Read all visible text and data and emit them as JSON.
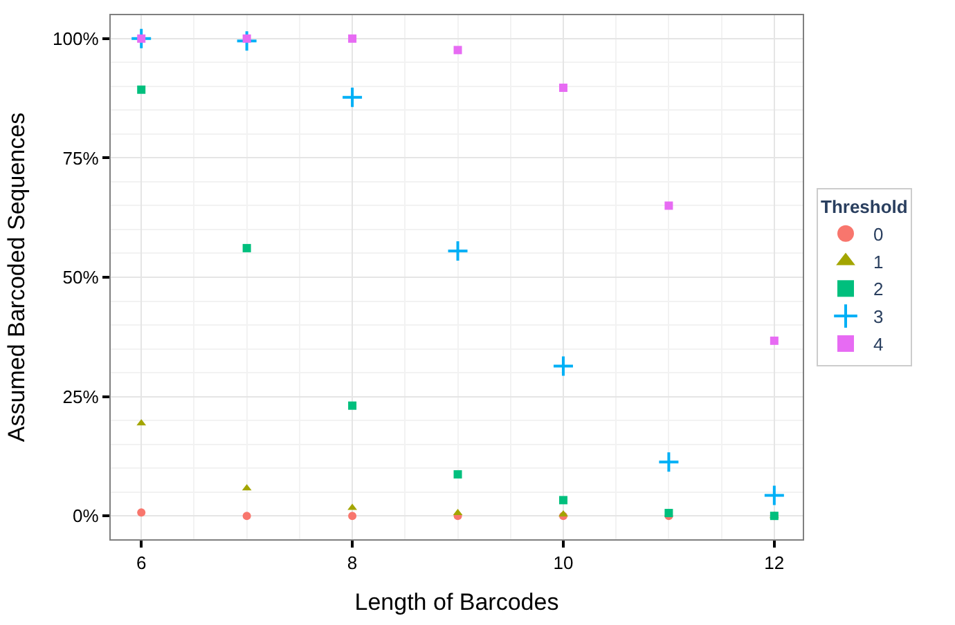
{
  "chart_data": {
    "type": "scatter",
    "xlabel": "Length of Barcodes",
    "ylabel": "Assumed Barcoded Sequences",
    "legend_title": "Threshold",
    "x": [
      6,
      7,
      8,
      9,
      10,
      11,
      12
    ],
    "series": [
      {
        "name": "0",
        "color": "#f8766d",
        "marker": "circle",
        "values": [
          0.7,
          0,
          0,
          0,
          0,
          0,
          0
        ]
      },
      {
        "name": "1",
        "color": "#a3a500",
        "marker": "triangle",
        "values": [
          19.4,
          5.8,
          1.7,
          0.6,
          0.3,
          null,
          0
        ]
      },
      {
        "name": "2",
        "color": "#00bf7d",
        "marker": "square",
        "values": [
          89.3,
          56.1,
          23.1,
          8.7,
          3.3,
          0.6,
          0
        ]
      },
      {
        "name": "3",
        "color": "#00b0f6",
        "marker": "cross",
        "values": [
          100,
          99.5,
          87.7,
          55.5,
          31.4,
          11.3,
          4.3
        ]
      },
      {
        "name": "4",
        "color": "#e76bf3",
        "marker": "square",
        "values": [
          100,
          100,
          100,
          97.6,
          89.7,
          65,
          36.7
        ]
      }
    ],
    "xlim": [
      5.71,
      12.27
    ],
    "xticks": [
      6,
      8,
      10,
      12
    ],
    "ylim": [
      -4.9,
      104.9
    ],
    "yticks": [
      {
        "value": 0,
        "label": "0%"
      },
      {
        "value": 25,
        "label": "25%"
      },
      {
        "value": 50,
        "label": "50%"
      },
      {
        "value": 75,
        "label": "75%"
      },
      {
        "value": 100,
        "label": "100%"
      }
    ],
    "grid": true,
    "legend": "right"
  }
}
